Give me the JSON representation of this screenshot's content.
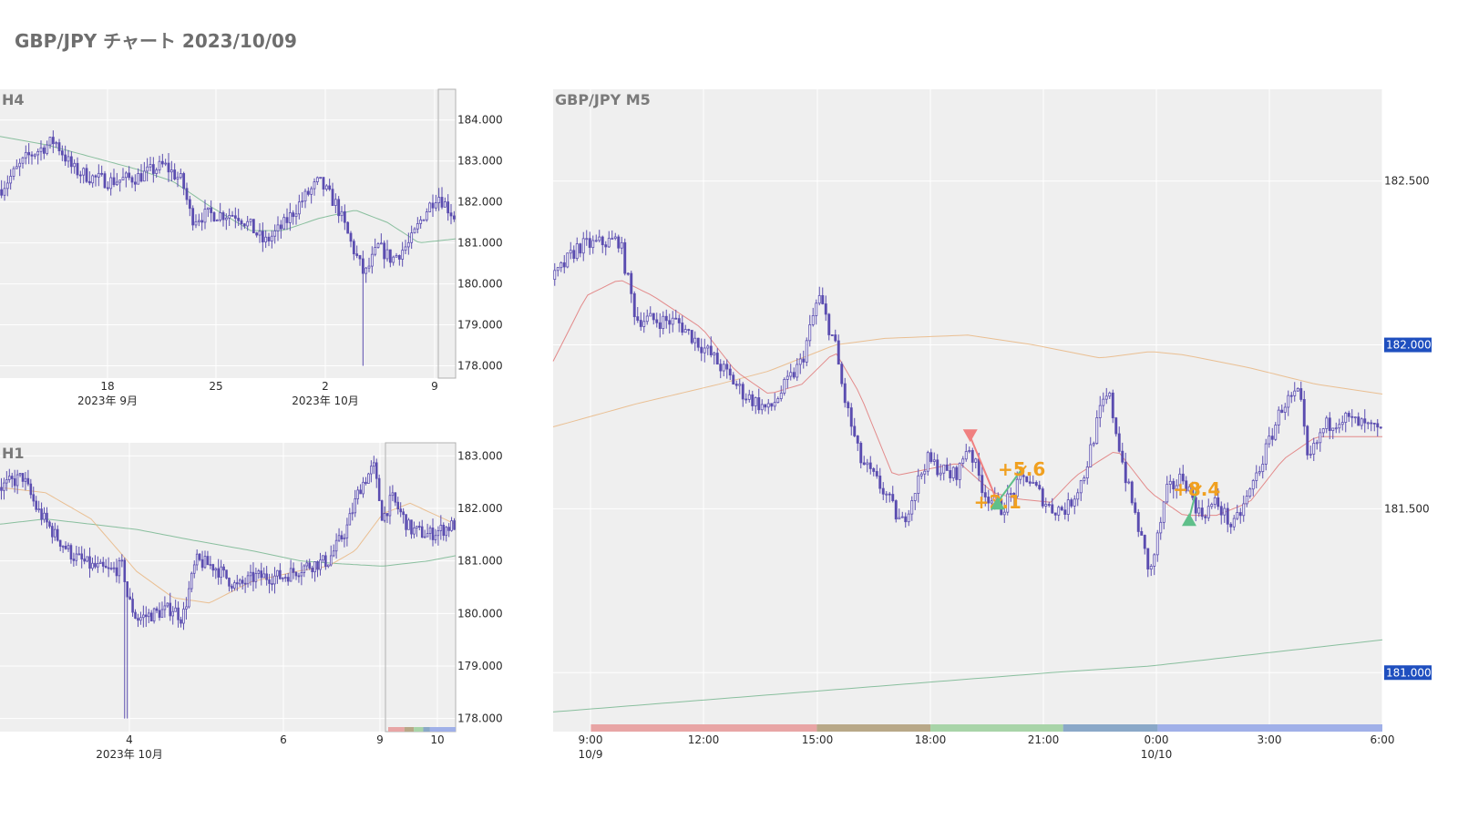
{
  "title": "GBP/JPY チャート 2023/10/09",
  "colors": {
    "candle": "#5b4db0",
    "plot_bg": "#efefef",
    "grid": "#ffffff",
    "ma_short": "#e07070",
    "ma_mid": "#e8b37a",
    "ma_long": "#6fb38a",
    "badge": "#1f4fbf",
    "annotation": "#f0a020",
    "sell_marker": "#f08080",
    "buy_marker": "#5fbf8a"
  },
  "chart_data": [
    {
      "id": "h4",
      "type": "candlestick",
      "label": "H4",
      "y_ticks": [
        "184.000",
        "183.000",
        "182.000",
        "181.000",
        "180.000",
        "179.000",
        "178.000"
      ],
      "y_tick_values": [
        184,
        183,
        182,
        181,
        180,
        179,
        178
      ],
      "ylim": [
        177.7,
        184.75
      ],
      "x_ticks": [
        "18",
        "25",
        "2",
        "9"
      ],
      "x_sub_labels": [
        "2023年 9月",
        "2023年 10月"
      ],
      "close_path": [
        [
          0,
          182.3
        ],
        [
          0.06,
          183.1
        ],
        [
          0.12,
          183.5
        ],
        [
          0.16,
          182.8
        ],
        [
          0.2,
          182.6
        ],
        [
          0.24,
          182.5
        ],
        [
          0.3,
          182.6
        ],
        [
          0.36,
          182.9
        ],
        [
          0.4,
          182.5
        ],
        [
          0.42,
          181.6
        ],
        [
          0.46,
          181.7
        ],
        [
          0.52,
          181.7
        ],
        [
          0.55,
          181.4
        ],
        [
          0.58,
          181.0
        ],
        [
          0.62,
          181.4
        ],
        [
          0.66,
          182.0
        ],
        [
          0.7,
          182.5
        ],
        [
          0.74,
          181.9
        ],
        [
          0.77,
          181.0
        ],
        [
          0.8,
          180.2
        ],
        [
          0.83,
          180.9
        ],
        [
          0.86,
          180.6
        ],
        [
          0.9,
          181.0
        ],
        [
          0.93,
          181.7
        ],
        [
          0.96,
          182.2
        ],
        [
          1.0,
          181.6
        ]
      ],
      "ma_long_path": [
        [
          0,
          183.6
        ],
        [
          0.1,
          183.4
        ],
        [
          0.2,
          183.1
        ],
        [
          0.3,
          182.8
        ],
        [
          0.38,
          182.5
        ],
        [
          0.46,
          181.9
        ],
        [
          0.55,
          181.3
        ],
        [
          0.62,
          181.3
        ],
        [
          0.7,
          181.6
        ],
        [
          0.78,
          181.8
        ],
        [
          0.85,
          181.5
        ],
        [
          0.92,
          181.0
        ],
        [
          1.0,
          181.1
        ]
      ],
      "highlight_window": [
        0.962,
        1.0
      ],
      "spike_low": {
        "x": 0.795,
        "y": 178.0
      }
    },
    {
      "id": "h1",
      "type": "candlestick",
      "label": "H1",
      "y_ticks": [
        "183.000",
        "182.000",
        "181.000",
        "180.000",
        "179.000",
        "178.000"
      ],
      "y_tick_values": [
        183,
        182,
        181,
        180,
        179,
        178
      ],
      "ylim": [
        177.75,
        183.25
      ],
      "x_ticks": [
        "4",
        "6",
        "9",
        "10"
      ],
      "x_sub_labels": [
        "2023年 10月"
      ],
      "close_path": [
        [
          0,
          182.4
        ],
        [
          0.05,
          182.6
        ],
        [
          0.08,
          182.0
        ],
        [
          0.12,
          181.5
        ],
        [
          0.16,
          181.1
        ],
        [
          0.2,
          180.9
        ],
        [
          0.24,
          180.8
        ],
        [
          0.27,
          180.9
        ],
        [
          0.28,
          180.3
        ],
        [
          0.3,
          179.9
        ],
        [
          0.34,
          180.0
        ],
        [
          0.38,
          180.1
        ],
        [
          0.4,
          179.9
        ],
        [
          0.43,
          181.0
        ],
        [
          0.47,
          180.9
        ],
        [
          0.52,
          180.5
        ],
        [
          0.56,
          180.7
        ],
        [
          0.62,
          180.7
        ],
        [
          0.67,
          180.9
        ],
        [
          0.72,
          181.0
        ],
        [
          0.76,
          181.6
        ],
        [
          0.79,
          182.4
        ],
        [
          0.82,
          182.8
        ],
        [
          0.84,
          181.8
        ],
        [
          0.86,
          182.2
        ],
        [
          0.9,
          181.6
        ],
        [
          0.94,
          181.5
        ],
        [
          1.0,
          181.7
        ]
      ],
      "ma_mid_path": [
        [
          0,
          182.4
        ],
        [
          0.1,
          182.3
        ],
        [
          0.2,
          181.8
        ],
        [
          0.3,
          180.8
        ],
        [
          0.38,
          180.3
        ],
        [
          0.46,
          180.2
        ],
        [
          0.55,
          180.6
        ],
        [
          0.65,
          180.8
        ],
        [
          0.72,
          180.9
        ],
        [
          0.78,
          181.2
        ],
        [
          0.84,
          181.9
        ],
        [
          0.9,
          182.1
        ],
        [
          1.0,
          181.7
        ]
      ],
      "ma_long_path": [
        [
          0,
          181.7
        ],
        [
          0.1,
          181.8
        ],
        [
          0.2,
          181.7
        ],
        [
          0.3,
          181.6
        ],
        [
          0.42,
          181.4
        ],
        [
          0.55,
          181.2
        ],
        [
          0.66,
          181.0
        ],
        [
          0.74,
          180.95
        ],
        [
          0.84,
          180.9
        ],
        [
          0.94,
          181.0
        ],
        [
          1.0,
          181.1
        ]
      ],
      "highlight_window": [
        0.846,
        1.0
      ],
      "spike_low": {
        "x": 0.277,
        "y": 178.0
      },
      "session_bar": [
        [
          "#e8a5a5",
          0.24
        ],
        [
          "#b8a888",
          0.14
        ],
        [
          "#a8d4a8",
          0.14
        ],
        [
          "#8aa8c8",
          0.1
        ],
        [
          "#a0b0e8",
          0.38
        ]
      ]
    },
    {
      "id": "m5",
      "type": "candlestick",
      "label": "GBP/JPY M5",
      "y_ticks": [
        "182.500",
        "182.000",
        "181.500",
        "181.000"
      ],
      "y_tick_values": [
        182.5,
        182.0,
        181.5,
        181.0
      ],
      "y_badges": [
        "182.000",
        "181.000"
      ],
      "ylim": [
        180.82,
        182.78
      ],
      "x_ticks": [
        "9:00",
        "12:00",
        "15:00",
        "18:00",
        "21:00",
        "0:00",
        "3:00",
        "6:00"
      ],
      "x_sub_labels": [
        "10/9",
        "10/10"
      ],
      "close_path": [
        [
          0,
          182.2
        ],
        [
          0.03,
          182.3
        ],
        [
          0.08,
          182.32
        ],
        [
          0.1,
          182.08
        ],
        [
          0.15,
          182.07
        ],
        [
          0.19,
          181.97
        ],
        [
          0.23,
          181.85
        ],
        [
          0.26,
          181.8
        ],
        [
          0.3,
          181.95
        ],
        [
          0.32,
          182.15
        ],
        [
          0.34,
          182.0
        ],
        [
          0.35,
          181.85
        ],
        [
          0.37,
          181.65
        ],
        [
          0.4,
          181.55
        ],
        [
          0.42,
          181.45
        ],
        [
          0.45,
          181.65
        ],
        [
          0.48,
          181.6
        ],
        [
          0.49,
          181.62
        ],
        [
          0.5,
          181.7
        ],
        [
          0.52,
          181.55
        ],
        [
          0.54,
          181.5
        ],
        [
          0.57,
          181.6
        ],
        [
          0.6,
          181.5
        ],
        [
          0.62,
          181.5
        ],
        [
          0.64,
          181.6
        ],
        [
          0.66,
          181.8
        ],
        [
          0.67,
          181.85
        ],
        [
          0.69,
          181.6
        ],
        [
          0.71,
          181.4
        ],
        [
          0.72,
          181.3
        ],
        [
          0.74,
          181.55
        ],
        [
          0.76,
          181.6
        ],
        [
          0.78,
          181.48
        ],
        [
          0.8,
          181.52
        ],
        [
          0.82,
          181.44
        ],
        [
          0.84,
          181.55
        ],
        [
          0.86,
          181.68
        ],
        [
          0.88,
          181.82
        ],
        [
          0.9,
          181.85
        ],
        [
          0.91,
          181.64
        ],
        [
          0.93,
          181.75
        ],
        [
          0.95,
          181.78
        ],
        [
          0.97,
          181.76
        ],
        [
          1.0,
          181.73
        ]
      ],
      "ma_short_path": [
        [
          0,
          181.95
        ],
        [
          0.04,
          182.15
        ],
        [
          0.08,
          182.2
        ],
        [
          0.12,
          182.15
        ],
        [
          0.18,
          182.05
        ],
        [
          0.22,
          181.92
        ],
        [
          0.26,
          181.85
        ],
        [
          0.3,
          181.88
        ],
        [
          0.34,
          181.98
        ],
        [
          0.37,
          181.85
        ],
        [
          0.41,
          181.6
        ],
        [
          0.45,
          181.62
        ],
        [
          0.49,
          181.64
        ],
        [
          0.53,
          181.55
        ],
        [
          0.56,
          181.53
        ],
        [
          0.6,
          181.52
        ],
        [
          0.63,
          181.6
        ],
        [
          0.68,
          181.68
        ],
        [
          0.72,
          181.55
        ],
        [
          0.76,
          181.48
        ],
        [
          0.8,
          181.48
        ],
        [
          0.84,
          181.52
        ],
        [
          0.88,
          181.65
        ],
        [
          0.92,
          181.72
        ],
        [
          1.0,
          181.72
        ]
      ],
      "ma_mid_path": [
        [
          0,
          181.75
        ],
        [
          0.1,
          181.82
        ],
        [
          0.2,
          181.88
        ],
        [
          0.26,
          181.92
        ],
        [
          0.34,
          182.0
        ],
        [
          0.4,
          182.02
        ],
        [
          0.5,
          182.03
        ],
        [
          0.58,
          182.0
        ],
        [
          0.66,
          181.96
        ],
        [
          0.72,
          181.98
        ],
        [
          0.76,
          181.97
        ],
        [
          0.84,
          181.93
        ],
        [
          0.92,
          181.88
        ],
        [
          1.0,
          181.85
        ]
      ],
      "ma_long_path": [
        [
          0,
          180.88
        ],
        [
          0.15,
          180.91
        ],
        [
          0.3,
          180.94
        ],
        [
          0.45,
          180.97
        ],
        [
          0.6,
          181.0
        ],
        [
          0.72,
          181.02
        ],
        [
          0.86,
          181.06
        ],
        [
          1.0,
          181.1
        ]
      ],
      "session_bar": [
        [
          "#e8a5a5",
          0.0,
          0.0
        ],
        [
          "#e8a5a5",
          0.0455,
          0.318
        ],
        [
          "#b8a888",
          0.318,
          0.455
        ],
        [
          "#a8d4a8",
          0.455,
          0.615
        ],
        [
          "#8aa8c8",
          0.615,
          0.729
        ],
        [
          "#a0b0e8",
          0.729,
          1.0
        ]
      ],
      "trades": [
        {
          "side": "sell",
          "entry_x": 0.503,
          "entry_y": 181.72,
          "exit_x": 0.536,
          "exit_y": 181.52,
          "label": "+2.1"
        },
        {
          "side": "buy",
          "entry_x": 0.536,
          "entry_y": 181.52,
          "exit_x": 0.565,
          "exit_y": 181.62,
          "label": "+5.6"
        },
        {
          "side": "buy",
          "entry_x": 0.767,
          "entry_y": 181.47,
          "exit_x": 0.776,
          "exit_y": 181.56,
          "label": "+8.4"
        }
      ]
    }
  ]
}
